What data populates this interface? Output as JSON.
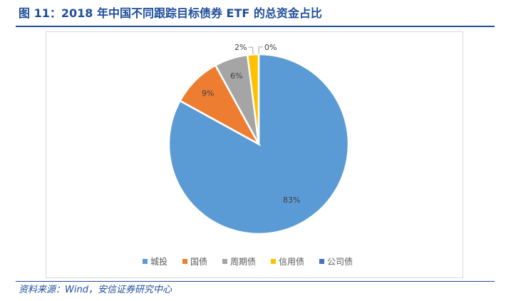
{
  "figure": {
    "title": "图 11：2018 年中国不同跟踪目标债券 ETF 的总资金占比",
    "source": "资料来源：Wind，安信证券研究中心"
  },
  "chart_data": {
    "type": "pie",
    "title": "",
    "legend_position": "bottom",
    "categories": [
      "城投",
      "国债",
      "周期债",
      "信用债",
      "公司债"
    ],
    "values": [
      83,
      9,
      6,
      2,
      0
    ],
    "data_labels": [
      "83%",
      "9%",
      "6%",
      "2%",
      "0%"
    ],
    "colors": [
      "#5b9bd5",
      "#ed7d31",
      "#a5a5a5",
      "#ffc000",
      "#4472c4"
    ]
  }
}
